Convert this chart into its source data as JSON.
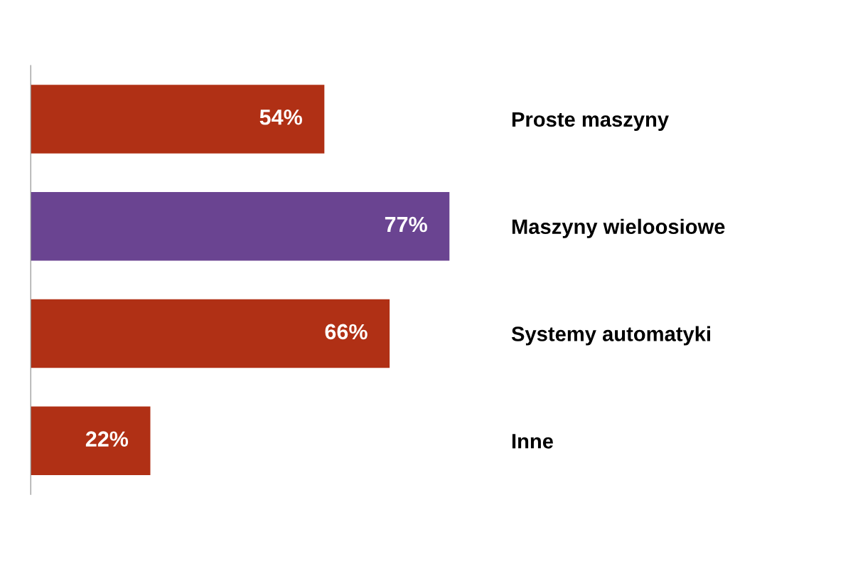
{
  "chart_data": {
    "type": "bar",
    "orientation": "horizontal",
    "categories": [
      "Proste maszyny",
      "Maszyny wieloosiowe",
      "Systemy automatyki",
      "Inne"
    ],
    "values": [
      54,
      77,
      66,
      22
    ],
    "colors": [
      "#b03015",
      "#6a4491",
      "#b03015",
      "#b03015"
    ],
    "value_labels": [
      "54%",
      "77%",
      "66%",
      "22%"
    ],
    "tick_labels": "y",
    "grid": false,
    "legend": false
  }
}
